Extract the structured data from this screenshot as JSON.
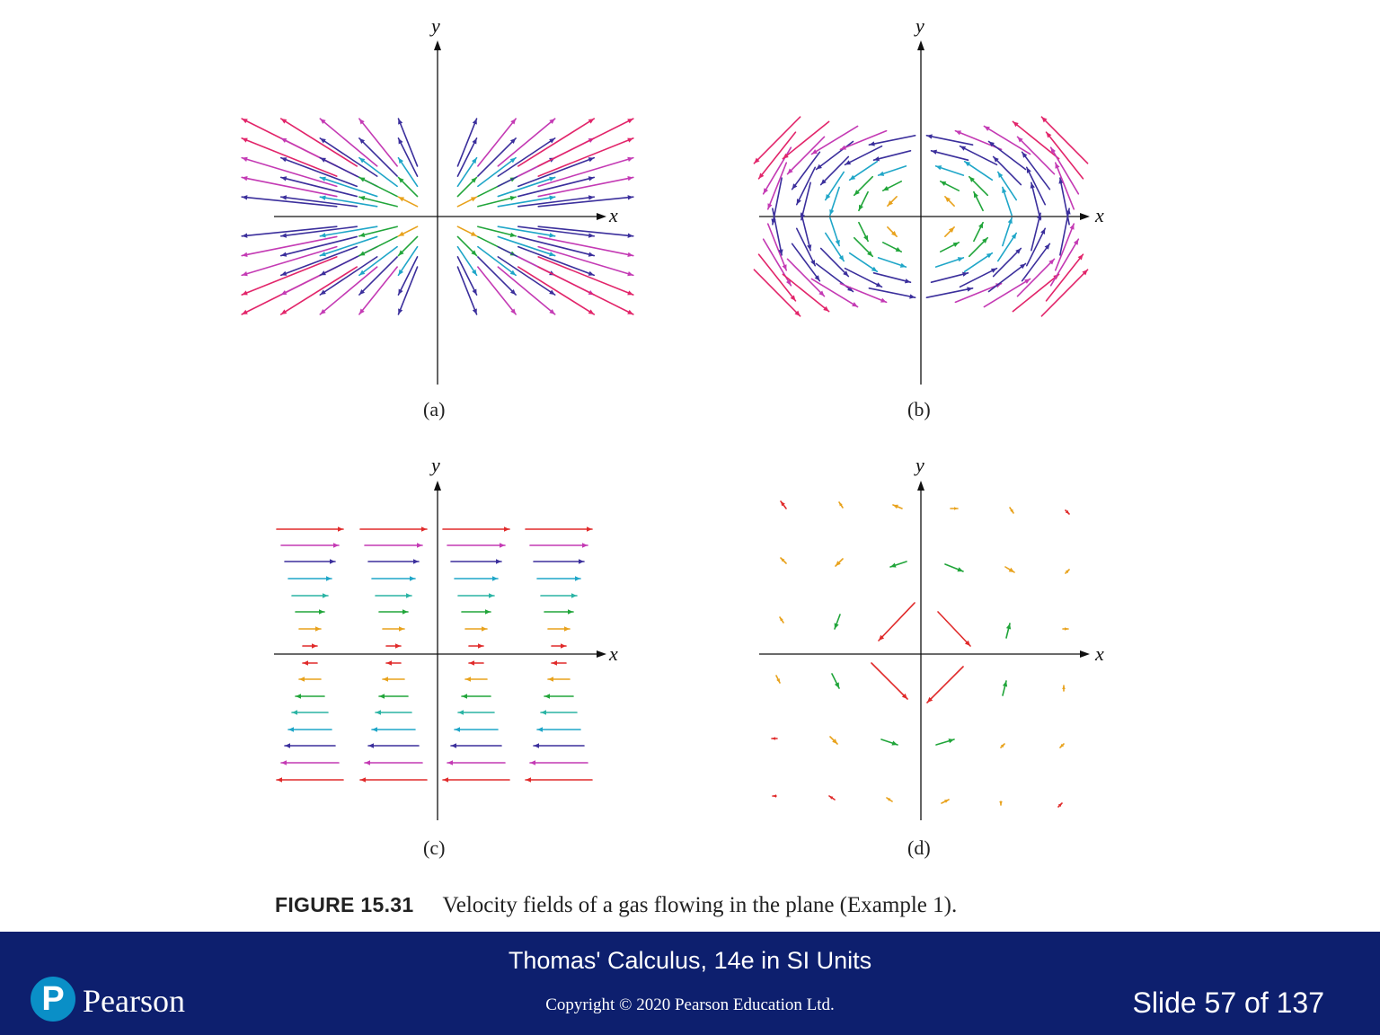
{
  "figure": {
    "panels": [
      {
        "id": "a",
        "label": "(a)",
        "field": "radial-outward",
        "xlabel": "x",
        "ylabel": "y"
      },
      {
        "id": "b",
        "label": "(b)",
        "field": "counterclockwise-rotation",
        "xlabel": "x",
        "ylabel": "y"
      },
      {
        "id": "c",
        "label": "(c)",
        "field": "horizontal-flow-by-y",
        "xlabel": "x",
        "ylabel": "y"
      },
      {
        "id": "d",
        "label": "(d)",
        "field": "saddle-swirl",
        "xlabel": "x",
        "ylabel": "y"
      }
    ],
    "colors": [
      "#e02a2a",
      "#e8a21c",
      "#21a53a",
      "#1fa6c8",
      "#2ab4a4",
      "#3b2f9c",
      "#c43ab4",
      "#e2256a"
    ],
    "caption_number": "FIGURE 15.31",
    "caption_text": "Velocity fields of a gas flowing in the plane (Example 1)."
  },
  "footer": {
    "book_title": "Thomas' Calculus, 14e in SI Units",
    "copyright": "Copyright © 2020 Pearson Education Ltd.",
    "slide_counter": "Slide 57 of 137",
    "logo_letter": "P",
    "logo_word": "Pearson",
    "background_color": "#0d1f6e"
  }
}
